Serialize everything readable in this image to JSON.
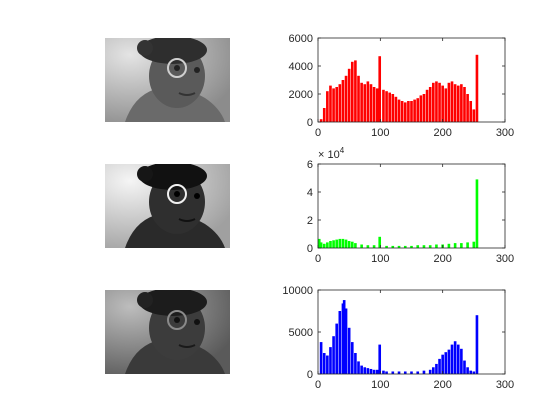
{
  "images": [
    {
      "name": "red-channel-image",
      "tone": "light"
    },
    {
      "name": "green-channel-image",
      "tone": "contrast"
    },
    {
      "name": "blue-channel-image",
      "tone": "dark"
    }
  ],
  "chart_data": [
    {
      "type": "bar",
      "title": "",
      "xlabel": "",
      "ylabel": "",
      "color": "#ff0000",
      "xlim": [
        0,
        300
      ],
      "ylim": [
        0,
        6000
      ],
      "xticks": [
        "0",
        "100",
        "200",
        "300"
      ],
      "yticks": [
        "0",
        "2000",
        "4000",
        "6000"
      ],
      "y_exponent": "",
      "grid": false,
      "x": [
        5,
        10,
        15,
        20,
        25,
        30,
        35,
        40,
        45,
        50,
        55,
        60,
        65,
        70,
        75,
        80,
        85,
        90,
        95,
        99,
        105,
        110,
        115,
        120,
        125,
        130,
        135,
        140,
        145,
        150,
        155,
        160,
        165,
        170,
        175,
        180,
        185,
        190,
        195,
        200,
        205,
        210,
        215,
        220,
        225,
        230,
        235,
        240,
        245,
        250,
        255
      ],
      "values": [
        200,
        1000,
        2200,
        2600,
        2400,
        2500,
        2700,
        3000,
        3300,
        3800,
        4300,
        4400,
        3300,
        2800,
        2700,
        2900,
        2700,
        2500,
        2400,
        4700,
        2300,
        2200,
        2100,
        2000,
        1800,
        1600,
        1500,
        1400,
        1500,
        1500,
        1600,
        1700,
        1900,
        2000,
        2300,
        2500,
        2800,
        2900,
        2800,
        2600,
        2400,
        2800,
        2900,
        2700,
        2600,
        2700,
        2500,
        2000,
        1500,
        900,
        4800
      ]
    },
    {
      "type": "bar",
      "title": "",
      "xlabel": "",
      "ylabel": "",
      "color": "#00ff00",
      "xlim": [
        0,
        300
      ],
      "ylim": [
        0,
        60000
      ],
      "xticks": [
        "0",
        "100",
        "200",
        "300"
      ],
      "yticks": [
        "0",
        "2",
        "4",
        "6"
      ],
      "y_exponent": "× 10^4",
      "grid": false,
      "x": [
        2,
        5,
        10,
        15,
        20,
        25,
        30,
        35,
        40,
        45,
        50,
        55,
        60,
        70,
        80,
        90,
        99,
        110,
        120,
        130,
        140,
        150,
        160,
        170,
        180,
        190,
        200,
        210,
        220,
        230,
        240,
        250,
        255
      ],
      "values": [
        6500,
        4000,
        3000,
        4000,
        5000,
        5500,
        6000,
        6500,
        6500,
        6000,
        5000,
        4500,
        3500,
        2500,
        2000,
        2000,
        8000,
        1500,
        1500,
        1500,
        1500,
        1500,
        2000,
        2000,
        2000,
        2500,
        2500,
        3000,
        3500,
        3500,
        4000,
        4500,
        49000
      ]
    },
    {
      "type": "bar",
      "title": "",
      "xlabel": "",
      "ylabel": "",
      "color": "#0000ff",
      "xlim": [
        0,
        300
      ],
      "ylim": [
        0,
        10000
      ],
      "xticks": [
        "0",
        "100",
        "200",
        "300"
      ],
      "yticks": [
        "0",
        "5000",
        "10000"
      ],
      "y_exponent": "",
      "grid": false,
      "x": [
        5,
        10,
        15,
        20,
        25,
        30,
        35,
        40,
        42,
        45,
        50,
        55,
        60,
        65,
        70,
        75,
        80,
        85,
        90,
        95,
        99,
        105,
        110,
        120,
        130,
        140,
        150,
        160,
        170,
        180,
        185,
        190,
        195,
        200,
        205,
        210,
        215,
        220,
        225,
        230,
        235,
        240,
        245,
        250,
        255
      ],
      "values": [
        3800,
        2500,
        2200,
        3200,
        4500,
        6000,
        7500,
        8400,
        8800,
        7800,
        5500,
        3800,
        2500,
        1500,
        1000,
        800,
        700,
        600,
        500,
        500,
        3500,
        400,
        300,
        300,
        300,
        300,
        300,
        300,
        400,
        500,
        800,
        1200,
        1800,
        2300,
        2600,
        2900,
        3500,
        3900,
        3500,
        3000,
        1600,
        800,
        400,
        300,
        7000
      ]
    }
  ]
}
